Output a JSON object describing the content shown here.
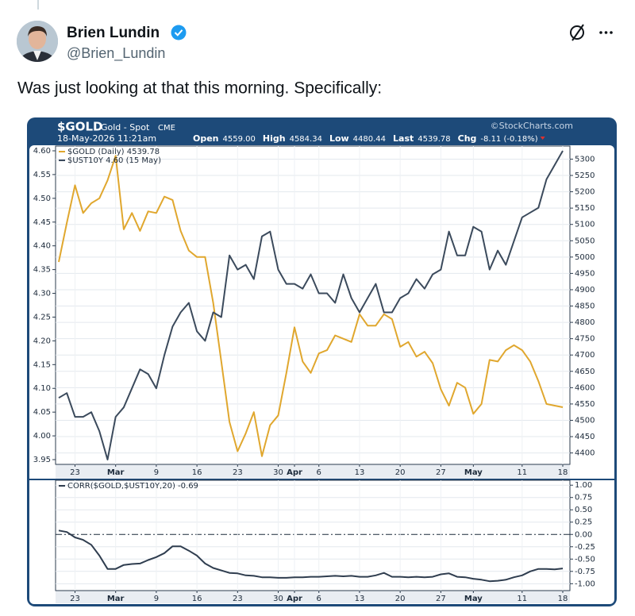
{
  "post": {
    "author_name": "Brien Lundin",
    "handle": "@Brien_Lundin",
    "text": "Was just looking at that this morning. Specifically:"
  },
  "chart_header": {
    "symbol": "$GOLD",
    "description": "Gold - Spot",
    "exchange": "CME",
    "timestamp": "18-May-2026 11:21am",
    "source": "©StockCharts.com",
    "quote": [
      {
        "label": "Open",
        "value": "4559.00"
      },
      {
        "label": "High",
        "value": "4584.34"
      },
      {
        "label": "Low",
        "value": "4480.44"
      },
      {
        "label": "Last",
        "value": "4539.78"
      },
      {
        "label": "Chg",
        "value": "-8.11 (-0.18%)"
      }
    ]
  },
  "chart_data": [
    {
      "type": "line",
      "grid": true,
      "legend": "upper left",
      "categories": [
        null,
        null,
        "23",
        null,
        null,
        null,
        null,
        "Mar",
        null,
        null,
        null,
        null,
        "9",
        null,
        null,
        null,
        null,
        "16",
        null,
        null,
        null,
        null,
        "23",
        null,
        null,
        null,
        null,
        "30",
        null,
        "Apr",
        null,
        null,
        "6",
        null,
        null,
        null,
        null,
        "13",
        null,
        null,
        null,
        null,
        "20",
        null,
        null,
        null,
        null,
        "27",
        null,
        null,
        null,
        "May",
        null,
        null,
        null,
        null,
        null,
        "11",
        null,
        null,
        null,
        null,
        "18"
      ],
      "ylim": [
        3.94,
        4.61
      ],
      "yticks": [
        3.95,
        {
          "value": 4,
          "label": "4.00"
        },
        4.05,
        {
          "value": 4.1,
          "label": "4.10"
        },
        4.15,
        {
          "value": 4.2,
          "label": "4.20"
        },
        4.25,
        {
          "value": 4.3,
          "label": "4.30"
        },
        4.35,
        {
          "value": 4.4,
          "label": "4.40"
        },
        4.45,
        {
          "value": 4.5,
          "label": "4.50"
        },
        4.55,
        {
          "value": 4.6,
          "label": "4.60"
        }
      ],
      "y2lim": [
        4365,
        5340
      ],
      "y2ticks": [
        4400,
        4450,
        4500,
        4550,
        4600,
        4650,
        4700,
        4750,
        4800,
        4850,
        4900,
        4950,
        5000,
        5050,
        5100,
        5150,
        5200,
        5250,
        5300
      ],
      "series": [
        {
          "name": "$GOLD (Daily) 4539.78",
          "color": "#e0a72e",
          "axis": "y2",
          "values": [
            4985,
            5105,
            5220,
            5135,
            5165,
            5180,
            5235,
            5310,
            5085,
            5135,
            5080,
            5140,
            5135,
            5185,
            5175,
            5080,
            5020,
            5000,
            5000,
            4860,
            4680,
            4495,
            4405,
            4460,
            4525,
            4390,
            4485,
            4515,
            4645,
            4785,
            4680,
            4645,
            4705,
            4715,
            4760,
            4750,
            4740,
            4825,
            4790,
            4790,
            4825,
            4810,
            4725,
            4740,
            4695,
            4710,
            4675,
            4595,
            4545,
            4615,
            4600,
            4520,
            4550,
            4685,
            4680,
            4715,
            4730,
            4715,
            4680,
            4620,
            4550,
            4545,
            4540
          ]
        },
        {
          "name": "$UST10Y 4.60 (15 May)",
          "color": "#3b4a5c",
          "values": [
            4.08,
            4.09,
            4.04,
            4.04,
            4.05,
            4.01,
            3.95,
            4.04,
            4.06,
            4.1,
            4.14,
            4.13,
            4.1,
            4.17,
            4.23,
            4.26,
            4.28,
            4.22,
            4.2,
            4.26,
            4.25,
            4.38,
            4.35,
            4.36,
            4.33,
            4.42,
            4.43,
            4.35,
            4.32,
            4.32,
            4.31,
            4.34,
            4.3,
            4.3,
            4.28,
            4.34,
            4.29,
            4.26,
            4.29,
            4.32,
            4.26,
            4.26,
            4.29,
            4.3,
            4.33,
            4.31,
            4.34,
            4.35,
            4.43,
            4.38,
            4.38,
            4.44,
            4.43,
            4.35,
            4.39,
            4.36,
            4.41,
            4.46,
            4.47,
            4.48,
            4.54,
            4.57,
            4.6
          ]
        }
      ]
    },
    {
      "type": "line",
      "grid": true,
      "legend": "upper left",
      "y_axis_side": "right",
      "zero_line": "dash-dot",
      "categories": [
        null,
        null,
        "23",
        null,
        null,
        null,
        null,
        "Mar",
        null,
        null,
        null,
        null,
        "9",
        null,
        null,
        null,
        null,
        "16",
        null,
        null,
        null,
        null,
        "23",
        null,
        null,
        null,
        null,
        "30",
        null,
        "Apr",
        null,
        null,
        "6",
        null,
        null,
        null,
        null,
        "13",
        null,
        null,
        null,
        null,
        "20",
        null,
        null,
        null,
        null,
        "27",
        null,
        null,
        null,
        "May",
        null,
        null,
        null,
        null,
        null,
        "11",
        null,
        null,
        null,
        null,
        "18"
      ],
      "ylim": [
        -1.14,
        1.1
      ],
      "yticks": [
        {
          "value": 1,
          "label": "1.00"
        },
        0.75,
        {
          "value": 0.5,
          "label": "0.50"
        },
        0.25,
        {
          "value": 0,
          "label": "0.00"
        },
        -0.25,
        {
          "value": -0.5,
          "label": "-0.50"
        },
        -0.75,
        {
          "value": -1,
          "label": "-1.00"
        }
      ],
      "series": [
        {
          "name": "CORR($GOLD,$UST10Y,20) -0.69",
          "color": "#2f3d4f",
          "values": [
            0.08,
            0.05,
            -0.06,
            -0.11,
            -0.21,
            -0.43,
            -0.7,
            -0.7,
            -0.62,
            -0.6,
            -0.59,
            -0.52,
            -0.46,
            -0.38,
            -0.24,
            -0.24,
            -0.33,
            -0.43,
            -0.59,
            -0.68,
            -0.73,
            -0.78,
            -0.79,
            -0.83,
            -0.84,
            -0.87,
            -0.87,
            -0.88,
            -0.88,
            -0.87,
            -0.87,
            -0.86,
            -0.86,
            -0.85,
            -0.84,
            -0.85,
            -0.84,
            -0.86,
            -0.86,
            -0.83,
            -0.78,
            -0.86,
            -0.86,
            -0.87,
            -0.86,
            -0.87,
            -0.86,
            -0.81,
            -0.79,
            -0.86,
            -0.87,
            -0.9,
            -0.92,
            -0.95,
            -0.94,
            -0.92,
            -0.87,
            -0.83,
            -0.75,
            -0.7,
            -0.7,
            -0.71,
            -0.69
          ]
        }
      ]
    }
  ]
}
